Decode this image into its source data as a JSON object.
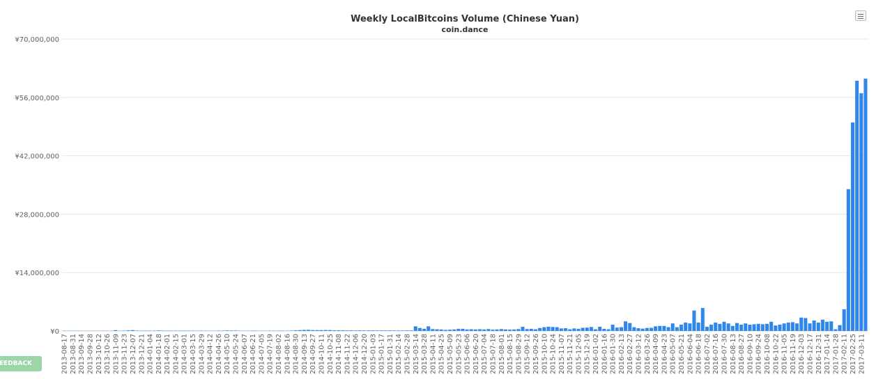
{
  "chart_data": {
    "type": "bar",
    "title": "Weekly LocalBitcoins Volume (Chinese Yuan)",
    "subtitle": "coin.dance",
    "ylim": [
      0,
      70000000
    ],
    "ytick_labels": [
      "¥0",
      "¥14,000,000",
      "¥28,000,000",
      "¥42,000,000",
      "¥56,000,000",
      "¥70,000,000"
    ],
    "ytick_values": [
      0,
      14000000,
      28000000,
      42000000,
      56000000,
      70000000
    ],
    "grid": true,
    "color": "#2f86eb",
    "categories": [
      "2013-08-17",
      "2013-08-24",
      "2013-08-31",
      "2013-09-07",
      "2013-09-14",
      "2013-09-21",
      "2013-09-28",
      "2013-10-05",
      "2013-10-12",
      "2013-10-19",
      "2013-10-26",
      "2013-11-02",
      "2013-11-09",
      "2013-11-16",
      "2013-11-23",
      "2013-11-30",
      "2013-12-07",
      "2013-12-14",
      "2013-12-21",
      "2013-12-28",
      "2014-01-04",
      "2014-01-11",
      "2014-01-18",
      "2014-01-25",
      "2014-02-01",
      "2014-02-08",
      "2014-02-15",
      "2014-02-22",
      "2014-03-01",
      "2014-03-08",
      "2014-03-15",
      "2014-03-22",
      "2014-03-29",
      "2014-04-05",
      "2014-04-12",
      "2014-04-19",
      "2014-04-26",
      "2014-05-03",
      "2014-05-10",
      "2014-05-17",
      "2014-05-24",
      "2014-05-31",
      "2014-06-07",
      "2014-06-14",
      "2014-06-21",
      "2014-06-28",
      "2014-07-05",
      "2014-07-12",
      "2014-07-19",
      "2014-07-26",
      "2014-08-02",
      "2014-08-09",
      "2014-08-16",
      "2014-08-23",
      "2014-08-30",
      "2014-09-06",
      "2014-09-13",
      "2014-09-20",
      "2014-09-27",
      "2014-10-04",
      "2014-10-11",
      "2014-10-18",
      "2014-10-25",
      "2014-11-01",
      "2014-11-08",
      "2014-11-15",
      "2014-11-22",
      "2014-11-29",
      "2014-12-06",
      "2014-12-13",
      "2014-12-20",
      "2014-12-27",
      "2015-01-03",
      "2015-01-10",
      "2015-01-17",
      "2015-01-24",
      "2015-01-31",
      "2015-02-07",
      "2015-02-14",
      "2015-02-21",
      "2015-02-28",
      "2015-03-07",
      "2015-03-14",
      "2015-03-21",
      "2015-03-28",
      "2015-04-04",
      "2015-04-11",
      "2015-04-18",
      "2015-04-25",
      "2015-05-02",
      "2015-05-09",
      "2015-05-16",
      "2015-05-23",
      "2015-05-30",
      "2015-06-06",
      "2015-06-13",
      "2015-06-20",
      "2015-06-27",
      "2015-07-04",
      "2015-07-11",
      "2015-07-18",
      "2015-07-25",
      "2015-08-01",
      "2015-08-08",
      "2015-08-15",
      "2015-08-22",
      "2015-08-29",
      "2015-09-05",
      "2015-09-12",
      "2015-09-19",
      "2015-09-26",
      "2015-10-03",
      "2015-10-10",
      "2015-10-17",
      "2015-10-24",
      "2015-10-31",
      "2015-11-07",
      "2015-11-14",
      "2015-11-21",
      "2015-11-28",
      "2015-12-05",
      "2015-12-12",
      "2015-12-19",
      "2015-12-26",
      "2016-01-02",
      "2016-01-09",
      "2016-01-16",
      "2016-01-23",
      "2016-01-30",
      "2016-02-06",
      "2016-02-13",
      "2016-02-20",
      "2016-02-27",
      "2016-03-05",
      "2016-03-12",
      "2016-03-19",
      "2016-03-26",
      "2016-04-02",
      "2016-04-09",
      "2016-04-16",
      "2016-04-23",
      "2016-04-30",
      "2016-05-07",
      "2016-05-14",
      "2016-05-21",
      "2016-05-28",
      "2016-06-04",
      "2016-06-11",
      "2016-06-18",
      "2016-06-25",
      "2016-07-02",
      "2016-07-09",
      "2016-07-16",
      "2016-07-23",
      "2016-07-30",
      "2016-08-06",
      "2016-08-13",
      "2016-08-20",
      "2016-08-27",
      "2016-09-03",
      "2016-09-10",
      "2016-09-17",
      "2016-09-24",
      "2016-10-01",
      "2016-10-08",
      "2016-10-15",
      "2016-10-22",
      "2016-10-29",
      "2016-11-05",
      "2016-11-12",
      "2016-11-19",
      "2016-11-26",
      "2016-12-03",
      "2016-12-10",
      "2016-12-17",
      "2016-12-24",
      "2016-12-31",
      "2017-01-07",
      "2017-01-14",
      "2017-01-21",
      "2017-01-28",
      "2017-02-04",
      "2017-02-11",
      "2017-02-18",
      "2017-02-25",
      "2017-03-04",
      "2017-03-11",
      "2017-03-18"
    ],
    "values": [
      50000,
      40000,
      60000,
      40000,
      30000,
      20000,
      30000,
      30000,
      40000,
      50000,
      30000,
      40000,
      200000,
      60000,
      80000,
      140000,
      200000,
      90000,
      70000,
      70000,
      80000,
      80000,
      120000,
      90000,
      70000,
      70000,
      80000,
      70000,
      80000,
      90000,
      70000,
      60000,
      70000,
      60000,
      60000,
      60000,
      70000,
      80000,
      120000,
      110000,
      100000,
      60000,
      50000,
      60000,
      80000,
      70000,
      50000,
      40000,
      50000,
      60000,
      70000,
      80000,
      70000,
      80000,
      150000,
      200000,
      250000,
      260000,
      200000,
      200000,
      200000,
      220000,
      210000,
      150000,
      150000,
      150000,
      130000,
      130000,
      120000,
      140000,
      120000,
      120000,
      130000,
      120000,
      120000,
      110000,
      120000,
      110000,
      110000,
      110000,
      130000,
      120000,
      1100000,
      700000,
      500000,
      1100000,
      450000,
      400000,
      350000,
      250000,
      300000,
      350000,
      500000,
      500000,
      350000,
      400000,
      350000,
      400000,
      350000,
      450000,
      300000,
      350000,
      450000,
      350000,
      300000,
      350000,
      450000,
      1000000,
      450000,
      500000,
      400000,
      700000,
      900000,
      1000000,
      950000,
      900000,
      600000,
      650000,
      400000,
      600000,
      500000,
      750000,
      800000,
      950000,
      400000,
      1000000,
      500000,
      400000,
      1500000,
      800000,
      900000,
      2300000,
      1900000,
      900000,
      650000,
      550000,
      700000,
      750000,
      1100000,
      1200000,
      1200000,
      900000,
      1800000,
      900000,
      1500000,
      2000000,
      1800000,
      4900000,
      2000000,
      5500000,
      1000000,
      1500000,
      2000000,
      1700000,
      2200000,
      1800000,
      1200000,
      1900000,
      1500000,
      1800000,
      1500000,
      1600000,
      1700000,
      1600000,
      1700000,
      2200000,
      1300000,
      1500000,
      1800000,
      2000000,
      2100000,
      1800000,
      3200000,
      3100000,
      1800000,
      2500000,
      2000000,
      2700000,
      2200000,
      2300000,
      400000,
      1400000,
      5200000,
      34000000,
      50000000,
      60000000,
      57000000,
      60500000
    ]
  },
  "ui": {
    "feedback_label": "EEDBACK",
    "menu_icon": "hamburger-menu-icon"
  }
}
